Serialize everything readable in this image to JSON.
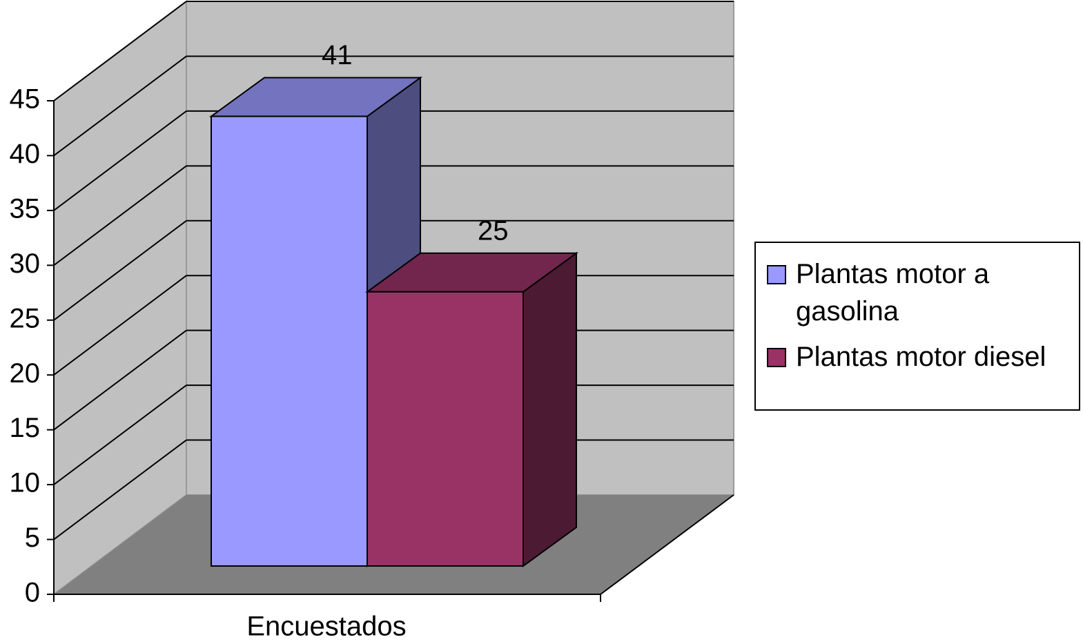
{
  "chart_data": {
    "type": "bar3d",
    "categories": [
      "Encuestados"
    ],
    "series": [
      {
        "name": "Plantas motor a gasolina",
        "color": "#9999ff",
        "values": [
          41
        ]
      },
      {
        "name": "Plantas motor diesel",
        "color": "#993366",
        "values": [
          25
        ]
      }
    ],
    "ylim": [
      0,
      45
    ],
    "yticks": [
      0,
      5,
      10,
      15,
      20,
      25,
      30,
      35,
      40,
      45
    ],
    "grid": true,
    "legend": "right"
  }
}
